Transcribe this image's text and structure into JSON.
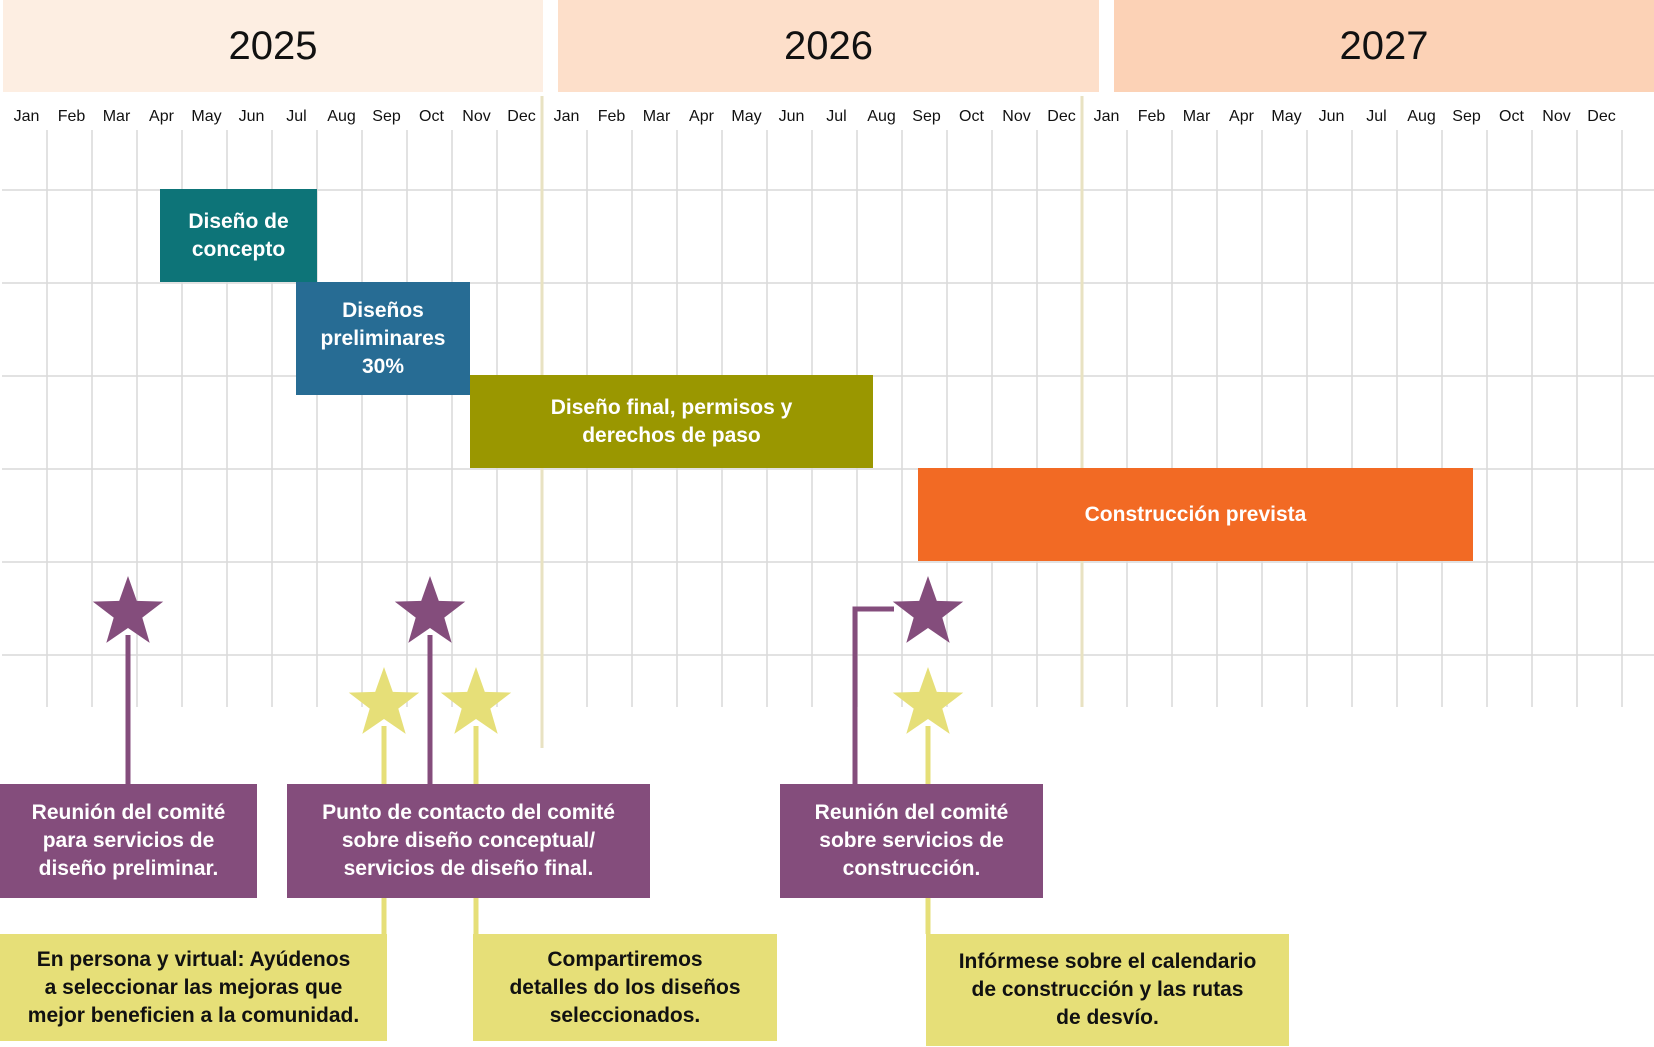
{
  "years": [
    "2025",
    "2026",
    "2027"
  ],
  "months": [
    "Jan",
    "Feb",
    "Mar",
    "Apr",
    "May",
    "Jun",
    "Jul",
    "Aug",
    "Sep",
    "Oct",
    "Nov",
    "Dec"
  ],
  "colors": {
    "year_band": [
      "#fdeee2",
      "#fddfca",
      "#fcd2b6"
    ],
    "grid": "#d9d9d9",
    "year_divider": "#e8e2c2",
    "concept": "#0d7478",
    "preliminary": "#276c94",
    "final": "#9a9700",
    "construction": "#f26a24",
    "committee": "#844d7c",
    "community": "#e6df78"
  },
  "phases": [
    {
      "label": "Diseño de\nconcepto",
      "color": "#0d7478"
    },
    {
      "label": "Diseños\npreliminares\n30%",
      "color": "#276c94"
    },
    {
      "label": "Diseño final, permisos y\nderechos de paso",
      "color": "#9a9700"
    },
    {
      "label": "Construcción prevista",
      "color": "#f26a24"
    }
  ],
  "committee_callouts": [
    {
      "text": "Reunión del comité\npara servicios de\ndiseño preliminar."
    },
    {
      "text": "Punto de contacto del comité\nsobre diseño conceptual/\nservicios de diseño final."
    },
    {
      "text": "Reunión del comité\nsobre servicios de\nconstrucción."
    }
  ],
  "community_callouts": [
    {
      "text": "En persona y virtual: Ayúdenos\na seleccionar las mejoras que\nmejor beneficien a la comunidad."
    },
    {
      "text": "Compartiremos\ndetalles do los diseños\nseleccionados."
    },
    {
      "text": "Infórmese sobre el calendario\nde construcción y las rutas\nde desvío."
    }
  ]
}
